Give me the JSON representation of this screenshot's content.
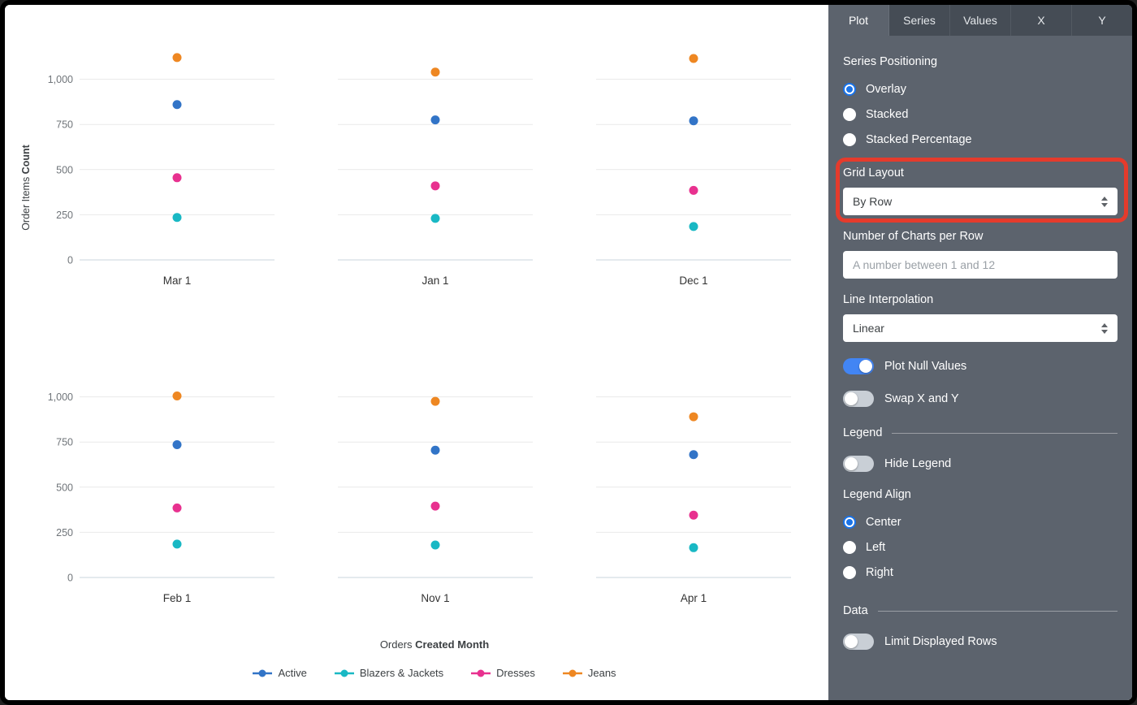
{
  "panel": {
    "tabs": [
      {
        "label": "Plot",
        "active": true
      },
      {
        "label": "Series",
        "active": false
      },
      {
        "label": "Values",
        "active": false
      },
      {
        "label": "X",
        "active": false
      },
      {
        "label": "Y",
        "active": false
      }
    ],
    "series_positioning": {
      "label": "Series Positioning",
      "options": [
        {
          "label": "Overlay",
          "selected": true
        },
        {
          "label": "Stacked",
          "selected": false
        },
        {
          "label": "Stacked Percentage",
          "selected": false
        }
      ]
    },
    "grid_layout": {
      "label": "Grid Layout",
      "value": "By Row"
    },
    "charts_per_row": {
      "label": "Number of Charts per Row",
      "value": "",
      "placeholder": "A number between 1 and 12"
    },
    "line_interpolation": {
      "label": "Line Interpolation",
      "value": "Linear"
    },
    "plot_null_values": {
      "label": "Plot Null Values",
      "on": true
    },
    "swap_x_y": {
      "label": "Swap X and Y",
      "on": false
    },
    "legend_section": {
      "label": "Legend"
    },
    "hide_legend": {
      "label": "Hide Legend",
      "on": false
    },
    "legend_align": {
      "label": "Legend Align",
      "options": [
        {
          "label": "Center",
          "selected": true
        },
        {
          "label": "Left",
          "selected": false
        },
        {
          "label": "Right",
          "selected": false
        }
      ]
    },
    "data_section": {
      "label": "Data"
    },
    "limit_displayed_rows": {
      "label": "Limit Displayed Rows",
      "on": false
    }
  },
  "annotation": {
    "shape": "rounded-rectangle",
    "color": "#e53b2c",
    "target": "Grid Layout"
  },
  "chart_data": {
    "type": "scatter",
    "layout": "small-multiples, 3 charts per row, 2 rows",
    "grid": true,
    "legend_position": "bottom-center",
    "xlabel": "Orders Created Month",
    "ylabel": "Order Items Count",
    "xlabel_parts": {
      "regular": "Orders",
      "bold": "Created Month"
    },
    "ylabel_parts": {
      "regular": "Order Items",
      "bold": "Count"
    },
    "ylim": [
      0,
      1250
    ],
    "yticks": [
      0,
      250,
      500,
      750,
      1000
    ],
    "ytick_labels": [
      "0",
      "250",
      "500",
      "750",
      "1,000"
    ],
    "series": [
      {
        "name": "Active",
        "color": "#3274c7"
      },
      {
        "name": "Blazers & Jackets",
        "color": "#19b8c4"
      },
      {
        "name": "Dresses",
        "color": "#e8318f"
      },
      {
        "name": "Jeans",
        "color": "#ee8722"
      }
    ],
    "facets": [
      {
        "x_label": "Mar 1",
        "points": {
          "Active": 860,
          "Blazers & Jackets": 235,
          "Dresses": 455,
          "Jeans": 1120
        }
      },
      {
        "x_label": "Jan 1",
        "points": {
          "Active": 775,
          "Blazers & Jackets": 230,
          "Dresses": 410,
          "Jeans": 1040
        }
      },
      {
        "x_label": "Dec 1",
        "points": {
          "Active": 770,
          "Blazers & Jackets": 185,
          "Dresses": 385,
          "Jeans": 1115
        }
      },
      {
        "x_label": "Feb 1",
        "points": {
          "Active": 735,
          "Blazers & Jackets": 185,
          "Dresses": 385,
          "Jeans": 1005
        }
      },
      {
        "x_label": "Nov 1",
        "points": {
          "Active": 705,
          "Blazers & Jackets": 180,
          "Dresses": 395,
          "Jeans": 975
        }
      },
      {
        "x_label": "Apr 1",
        "points": {
          "Active": 680,
          "Blazers & Jackets": 165,
          "Dresses": 345,
          "Jeans": 890
        }
      }
    ]
  }
}
